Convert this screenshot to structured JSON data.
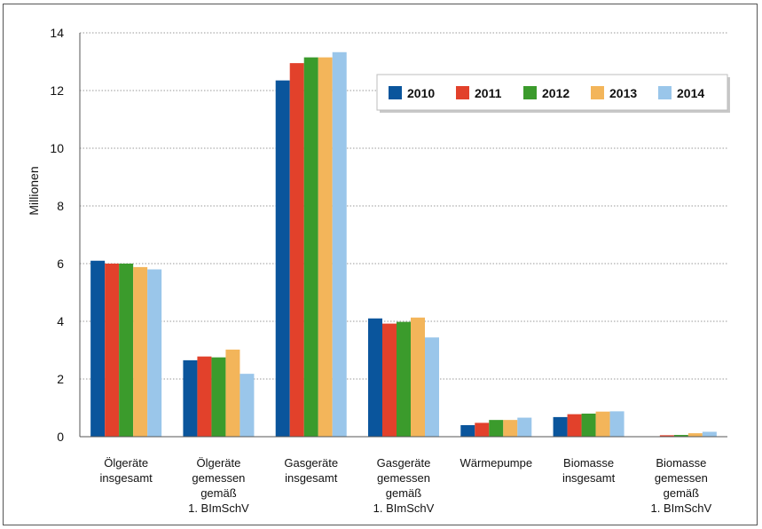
{
  "chart_data": {
    "type": "bar",
    "ylabel": "Millionen",
    "xlabel": "",
    "ylim": [
      0,
      14
    ],
    "yticks": [
      "0",
      "2",
      "4",
      "6",
      "8",
      "10",
      "12",
      "14"
    ],
    "grid": true,
    "legend_position": "top-right",
    "categories": [
      [
        "Ölgeräte",
        "insgesamt"
      ],
      [
        "Ölgeräte",
        "gemessen",
        "gemäß",
        "1. BImSchV"
      ],
      [
        "Gasgeräte",
        "insgesamt"
      ],
      [
        "Gasgeräte",
        "gemessen",
        "gemäß",
        "1. BImSchV"
      ],
      [
        "Wärmepumpe"
      ],
      [
        "Biomasse",
        "insgesamt"
      ],
      [
        "Biomasse",
        "gemessen",
        "gemäß",
        "1. BImSchV"
      ]
    ],
    "series": [
      {
        "name": "2010",
        "color": "#0a559c",
        "values": [
          6.1,
          2.65,
          12.35,
          4.1,
          0.4,
          0.68,
          0.0
        ]
      },
      {
        "name": "2011",
        "color": "#e2412b",
        "values": [
          6.0,
          2.78,
          12.95,
          3.92,
          0.48,
          0.78,
          0.05
        ]
      },
      {
        "name": "2012",
        "color": "#3b9b2c",
        "values": [
          6.0,
          2.75,
          13.15,
          3.98,
          0.58,
          0.8,
          0.06
        ]
      },
      {
        "name": "2013",
        "color": "#f3b55a",
        "values": [
          5.88,
          3.02,
          13.15,
          4.13,
          0.58,
          0.87,
          0.12
        ]
      },
      {
        "name": "2014",
        "color": "#9ac6ea",
        "values": [
          5.8,
          2.18,
          13.33,
          3.44,
          0.66,
          0.88,
          0.17
        ]
      }
    ]
  }
}
